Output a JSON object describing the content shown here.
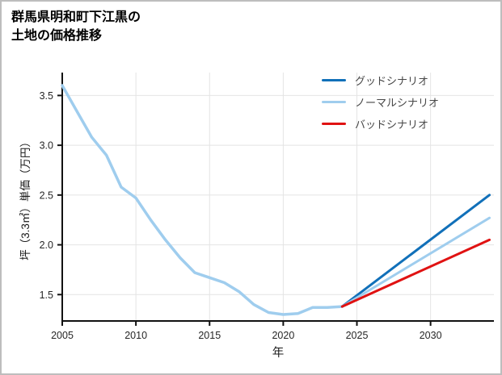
{
  "header": {
    "title_lines": [
      "群馬県明和町下江黒の",
      "土地の価格推移"
    ]
  },
  "chart_data": {
    "type": "line",
    "title": "群馬県明和町下江黒の土地の価格推移",
    "xlabel": "年",
    "ylabel": "坪（3.3㎡）単価（万円）",
    "xlim": [
      2005,
      2034.3
    ],
    "ylim": [
      1.235,
      3.73
    ],
    "xticks": [
      2005,
      2010,
      2015,
      2020,
      2025,
      2030
    ],
    "xtick_labels": [
      "2005",
      "2010",
      "2015",
      "2020",
      "2025",
      "2030"
    ],
    "yticks": [
      1.5,
      2.0,
      2.5,
      3.0,
      3.5
    ],
    "ytick_labels": [
      "1.5",
      "2.0",
      "2.5",
      "3.0",
      "3.5"
    ],
    "grid": true,
    "legend_position": "top-right-inside",
    "colors": {
      "grid": "#e4e4e4",
      "axis": "#111111",
      "tick_label": "#262626",
      "history": "#9fcdee",
      "good": "#1170b9",
      "normal": "#9fcdee",
      "bad": "#e01212"
    },
    "series": [
      {
        "id": "historical",
        "label": "",
        "color": "#9fcdee",
        "width": 3.5,
        "x": [
          2005,
          2006,
          2007,
          2008,
          2009,
          2010,
          2011,
          2012,
          2013,
          2014,
          2015,
          2016,
          2017,
          2018,
          2019,
          2020,
          2021,
          2022,
          2023,
          2024
        ],
        "y": [
          3.6,
          3.34,
          3.08,
          2.9,
          2.58,
          2.47,
          2.25,
          2.05,
          1.87,
          1.72,
          1.67,
          1.62,
          1.53,
          1.4,
          1.32,
          1.3,
          1.31,
          1.37,
          1.37,
          1.38
        ]
      },
      {
        "id": "good-scenario",
        "label": "グッドシナリオ",
        "color": "#1170b9",
        "width": 3,
        "x": [
          2024,
          2034
        ],
        "y": [
          1.38,
          2.5
        ]
      },
      {
        "id": "normal-scenario",
        "label": "ノーマルシナリオ",
        "color": "#9fcdee",
        "width": 3,
        "x": [
          2024,
          2034
        ],
        "y": [
          1.38,
          2.27
        ]
      },
      {
        "id": "bad-scenario",
        "label": "バッドシナリオ",
        "color": "#e01212",
        "width": 3,
        "x": [
          2024,
          2034
        ],
        "y": [
          1.38,
          2.05
        ]
      }
    ],
    "legend": [
      {
        "label": "グッドシナリオ",
        "color": "#1170b9"
      },
      {
        "label": "ノーマルシナリオ",
        "color": "#9fcdee"
      },
      {
        "label": "バッドシナリオ",
        "color": "#e01212"
      }
    ]
  }
}
